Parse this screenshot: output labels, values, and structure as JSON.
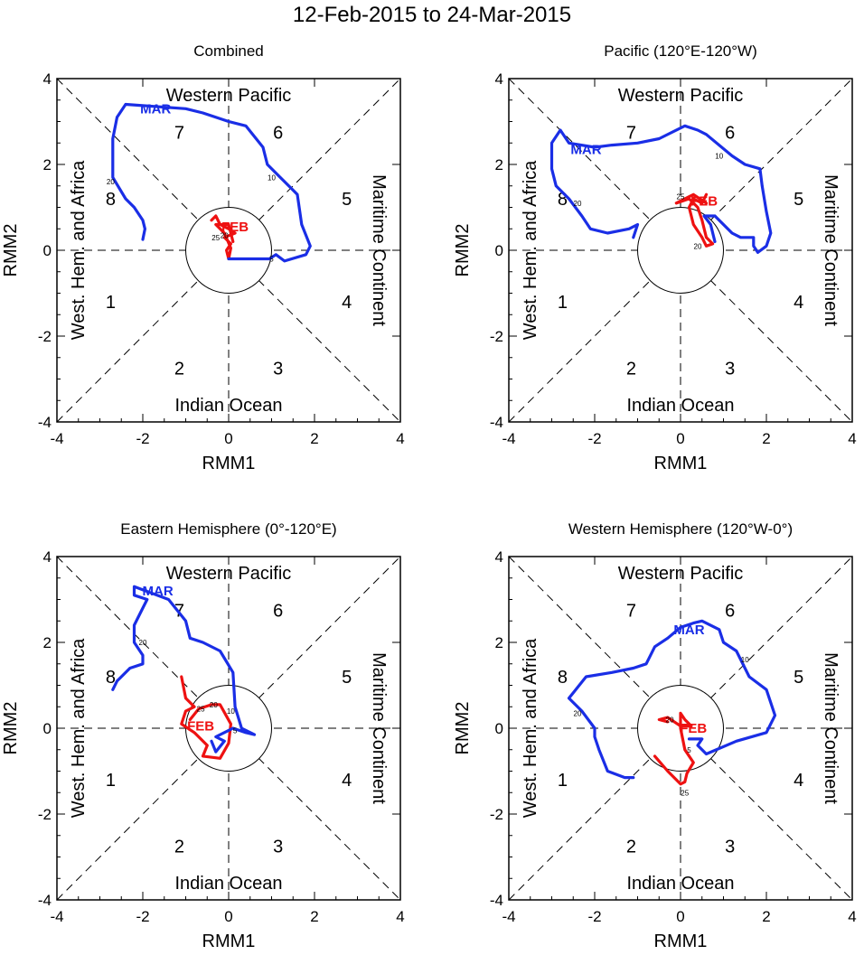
{
  "title": "12-Feb-2015 to 24-Mar-2015",
  "colors": {
    "feb": "#ee1111",
    "mar": "#1a2ee6",
    "axis": "#000000"
  },
  "common": {
    "xlabel": "RMM1",
    "ylabel": "RMM2",
    "range": [
      -4,
      4
    ],
    "ticks": [
      -4,
      -2,
      0,
      2,
      4
    ],
    "tick_labels": [
      "-4",
      "-2",
      "0",
      "2",
      "4"
    ],
    "region_labels": {
      "top": "Western Pacific",
      "bottom": "Indian Ocean",
      "left": "West. Hem. and Africa",
      "right": "Maritime Continent"
    },
    "phases": [
      "1",
      "2",
      "3",
      "4",
      "5",
      "6",
      "7",
      "8"
    ]
  },
  "chart_data": [
    {
      "type": "line",
      "title": "Combined",
      "series": [
        {
          "name": "FEB",
          "label": "FEB",
          "color": "#ee1111",
          "points": [
            [
              -0.4,
              0.7
            ],
            [
              -0.3,
              0.8
            ],
            [
              -0.2,
              0.6
            ],
            [
              0.0,
              0.5
            ],
            [
              0.15,
              0.4
            ],
            [
              -0.1,
              0.3
            ],
            [
              0.05,
              0.15
            ],
            [
              -0.05,
              0.0
            ],
            [
              0.0,
              -0.2
            ],
            [
              0.05,
              0.05
            ],
            [
              -0.1,
              0.4
            ],
            [
              -0.3,
              0.6
            ],
            [
              0.0,
              0.6
            ],
            [
              0.1,
              0.2
            ]
          ],
          "day_marks": [
            {
              "text": "25",
              "x": -0.3,
              "y": 0.3
            },
            {
              "text": "20",
              "x": -0.1,
              "y": 0.35
            }
          ],
          "label_pos": [
            0.15,
            0.55
          ]
        },
        {
          "name": "MAR",
          "label": "MAR",
          "color": "#1a2ee6",
          "points": [
            [
              0.0,
              -0.2
            ],
            [
              0.7,
              -0.2
            ],
            [
              0.95,
              -0.2
            ],
            [
              1.1,
              -0.1
            ],
            [
              1.3,
              -0.25
            ],
            [
              1.8,
              -0.1
            ],
            [
              1.9,
              0.1
            ],
            [
              1.7,
              0.6
            ],
            [
              1.6,
              1.3
            ],
            [
              1.5,
              1.4
            ],
            [
              1.2,
              1.7
            ],
            [
              0.9,
              2.0
            ],
            [
              0.8,
              2.4
            ],
            [
              0.4,
              2.9
            ],
            [
              0.0,
              3.0
            ],
            [
              -0.6,
              3.2
            ],
            [
              -1.0,
              3.3
            ],
            [
              -2.4,
              3.4
            ],
            [
              -2.6,
              3.1
            ],
            [
              -2.7,
              2.6
            ],
            [
              -2.7,
              2.4
            ],
            [
              -2.7,
              1.7
            ],
            [
              -2.4,
              1.2
            ],
            [
              -2.2,
              1.0
            ],
            [
              -2.0,
              0.7
            ],
            [
              -1.95,
              0.5
            ],
            [
              -2.0,
              0.25
            ]
          ],
          "day_marks": [
            {
              "text": "5",
              "x": 1.0,
              "y": -0.2
            },
            {
              "text": "10",
              "x": 1.0,
              "y": 1.7
            },
            {
              "text": "20",
              "x": -2.75,
              "y": 1.6
            }
          ],
          "label_pos": [
            -1.7,
            3.3
          ]
        }
      ]
    },
    {
      "type": "line",
      "title": "Pacific (120°E-120°W)",
      "series": [
        {
          "name": "FEB",
          "label": "FEB",
          "color": "#ee1111",
          "points": [
            [
              0.6,
              1.3
            ],
            [
              0.5,
              1.1
            ],
            [
              0.3,
              1.2
            ],
            [
              0.2,
              1.0
            ],
            [
              0.3,
              0.6
            ],
            [
              0.5,
              0.3
            ],
            [
              0.6,
              0.1
            ],
            [
              0.75,
              0.15
            ],
            [
              0.6,
              0.3
            ],
            [
              0.5,
              0.7
            ],
            [
              0.4,
              1.0
            ],
            [
              0.2,
              1.2
            ],
            [
              -0.1,
              1.1
            ],
            [
              0.3,
              1.3
            ],
            [
              0.6,
              1.1
            ]
          ],
          "day_marks": [
            {
              "text": "25",
              "x": 0.0,
              "y": 1.25
            },
            {
              "text": "20",
              "x": 0.4,
              "y": 0.1
            }
          ],
          "label_pos": [
            0.55,
            1.15
          ]
        },
        {
          "name": "MAR",
          "label": "MAR",
          "color": "#1a2ee6",
          "points": [
            [
              0.8,
              0.2
            ],
            [
              0.7,
              0.6
            ],
            [
              0.55,
              0.8
            ],
            [
              0.8,
              0.8
            ],
            [
              1.2,
              0.4
            ],
            [
              1.4,
              0.3
            ],
            [
              1.7,
              0.3
            ],
            [
              1.7,
              0.1
            ],
            [
              1.8,
              -0.05
            ],
            [
              2.0,
              0.1
            ],
            [
              2.1,
              0.4
            ],
            [
              2.0,
              0.9
            ],
            [
              1.9,
              1.5
            ],
            [
              1.85,
              1.9
            ],
            [
              1.5,
              2.0
            ],
            [
              1.2,
              2.2
            ],
            [
              0.6,
              2.7
            ],
            [
              0.4,
              2.8
            ],
            [
              0.1,
              2.9
            ],
            [
              -0.5,
              2.6
            ],
            [
              -1.0,
              2.5
            ],
            [
              -1.6,
              2.45
            ],
            [
              -2.0,
              2.4
            ],
            [
              -2.6,
              2.5
            ],
            [
              -2.8,
              2.8
            ],
            [
              -3.0,
              2.5
            ],
            [
              -3.0,
              1.9
            ],
            [
              -2.9,
              1.5
            ],
            [
              -2.6,
              1.2
            ],
            [
              -2.3,
              0.8
            ],
            [
              -2.1,
              0.5
            ],
            [
              -1.7,
              0.4
            ],
            [
              -1.2,
              0.5
            ],
            [
              -1.0,
              0.6
            ],
            [
              -1.1,
              0.3
            ]
          ],
          "day_marks": [
            {
              "text": "10",
              "x": 0.9,
              "y": 2.2
            },
            {
              "text": "20",
              "x": -2.4,
              "y": 1.1
            }
          ],
          "label_pos": [
            -2.2,
            2.35
          ]
        }
      ]
    },
    {
      "type": "line",
      "title": "Eastern Hemisphere (0°-120°E)",
      "series": [
        {
          "name": "FEB",
          "label": "FEB",
          "color": "#ee1111",
          "points": [
            [
              -1.1,
              1.2
            ],
            [
              -1.0,
              0.7
            ],
            [
              -0.8,
              0.5
            ],
            [
              -1.0,
              0.4
            ],
            [
              -1.1,
              0.1
            ],
            [
              -0.8,
              -0.1
            ],
            [
              -0.5,
              -0.4
            ],
            [
              -0.6,
              -0.65
            ],
            [
              -0.2,
              -0.7
            ],
            [
              0.0,
              -0.35
            ],
            [
              0.05,
              0.1
            ],
            [
              -0.2,
              0.55
            ],
            [
              -0.4,
              0.55
            ],
            [
              -0.7,
              0.45
            ],
            [
              -0.9,
              0.2
            ]
          ],
          "day_marks": [
            {
              "text": "25",
              "x": -0.65,
              "y": 0.45
            },
            {
              "text": "20",
              "x": -0.35,
              "y": 0.55
            }
          ],
          "label_pos": [
            -0.65,
            0.05
          ]
        },
        {
          "name": "MAR",
          "label": "MAR",
          "color": "#1a2ee6",
          "points": [
            [
              -0.4,
              -0.3
            ],
            [
              -0.3,
              -0.55
            ],
            [
              -0.1,
              -0.3
            ],
            [
              -0.3,
              -0.2
            ],
            [
              0.1,
              0.0
            ],
            [
              0.4,
              -0.1
            ],
            [
              0.6,
              -0.15
            ],
            [
              0.3,
              0.0
            ],
            [
              0.15,
              0.5
            ],
            [
              0.1,
              1.3
            ],
            [
              -0.2,
              1.8
            ],
            [
              -0.6,
              2.0
            ],
            [
              -0.9,
              2.1
            ],
            [
              -1.0,
              2.5
            ],
            [
              -1.4,
              3.0
            ],
            [
              -2.2,
              3.3
            ],
            [
              -2.2,
              3.1
            ],
            [
              -1.9,
              3.0
            ],
            [
              -2.0,
              2.8
            ],
            [
              -2.2,
              2.4
            ],
            [
              -2.2,
              2.0
            ],
            [
              -2.0,
              1.7
            ],
            [
              -2.0,
              1.5
            ],
            [
              -2.3,
              1.4
            ],
            [
              -2.5,
              1.2
            ],
            [
              -2.6,
              1.1
            ],
            [
              -2.7,
              0.9
            ]
          ],
          "day_marks": [
            {
              "text": "5",
              "x": 0.15,
              "y": -0.05
            },
            {
              "text": "10",
              "x": 0.05,
              "y": 0.4
            },
            {
              "text": "20",
              "x": -2.0,
              "y": 2.0
            }
          ],
          "label_pos": [
            -1.65,
            3.2
          ]
        }
      ]
    },
    {
      "type": "line",
      "title": "Western Hemisphere (120°W-0°)",
      "series": [
        {
          "name": "FEB",
          "label": "FEB",
          "color": "#ee1111",
          "points": [
            [
              -0.6,
              -0.65
            ],
            [
              -0.3,
              -1.0
            ],
            [
              0.0,
              -1.3
            ],
            [
              0.1,
              -1.25
            ],
            [
              0.15,
              -1.05
            ],
            [
              0.3,
              -0.8
            ],
            [
              0.1,
              -0.5
            ],
            [
              0.0,
              0.0
            ],
            [
              0.0,
              0.35
            ],
            [
              0.1,
              0.2
            ],
            [
              0.25,
              0.05
            ],
            [
              0.0,
              0.05
            ],
            [
              -0.3,
              0.25
            ],
            [
              -0.5,
              0.2
            ],
            [
              -0.3,
              0.15
            ]
          ],
          "day_marks": [
            {
              "text": "25",
              "x": 0.1,
              "y": -1.5
            },
            {
              "text": "20",
              "x": -0.25,
              "y": 0.2
            }
          ],
          "label_pos": [
            0.3,
            0.0
          ]
        },
        {
          "name": "MAR",
          "label": "MAR",
          "color": "#1a2ee6",
          "points": [
            [
              -1.1,
              -1.15
            ],
            [
              -1.3,
              -1.15
            ],
            [
              -1.7,
              -1.0
            ],
            [
              -1.9,
              -0.5
            ],
            [
              -2.0,
              -0.2
            ],
            [
              -2.0,
              0.0
            ],
            [
              -2.3,
              0.4
            ],
            [
              -2.6,
              0.7
            ],
            [
              -2.2,
              1.2
            ],
            [
              -1.6,
              1.3
            ],
            [
              -1.1,
              1.4
            ],
            [
              -0.8,
              1.5
            ],
            [
              -0.6,
              1.9
            ],
            [
              -0.3,
              2.1
            ],
            [
              0.0,
              2.35
            ],
            [
              0.3,
              2.45
            ],
            [
              0.5,
              2.5
            ],
            [
              0.9,
              2.3
            ],
            [
              1.0,
              2.0
            ],
            [
              1.3,
              1.8
            ],
            [
              1.6,
              1.2
            ],
            [
              2.0,
              0.9
            ],
            [
              2.2,
              0.3
            ],
            [
              2.0,
              -0.1
            ],
            [
              1.3,
              -0.3
            ],
            [
              0.6,
              -0.6
            ],
            [
              0.4,
              -0.4
            ],
            [
              0.5,
              -0.25
            ],
            [
              0.2,
              -0.25
            ]
          ],
          "day_marks": [
            {
              "text": "5",
              "x": 0.2,
              "y": -0.5
            },
            {
              "text": "10",
              "x": 1.5,
              "y": 1.6
            },
            {
              "text": "20",
              "x": -2.4,
              "y": 0.35
            }
          ],
          "label_pos": [
            0.2,
            2.3
          ]
        }
      ]
    }
  ]
}
